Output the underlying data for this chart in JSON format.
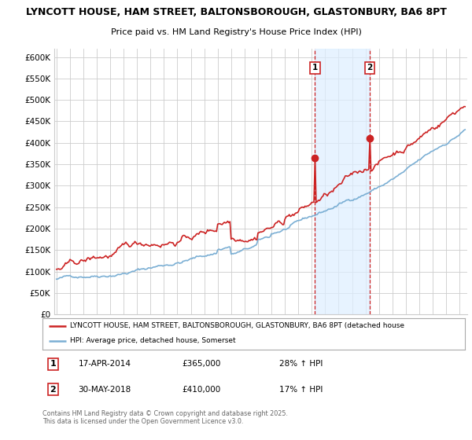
{
  "title_line1": "LYNCOTT HOUSE, HAM STREET, BALTONSBOROUGH, GLASTONBURY, BA6 8PT",
  "title_line2": "Price paid vs. HM Land Registry's House Price Index (HPI)",
  "hpi_color": "#7bafd4",
  "price_color": "#cc2222",
  "sale1_date": "17-APR-2014",
  "sale1_price": "£365,000",
  "sale1_pct": "28% ↑ HPI",
  "sale2_date": "30-MAY-2018",
  "sale2_price": "£410,000",
  "sale2_pct": "17% ↑ HPI",
  "legend_line1": "LYNCOTT HOUSE, HAM STREET, BALTONSBOROUGH, GLASTONBURY, BA6 8PT (detached house",
  "legend_line2": "HPI: Average price, detached house, Somerset",
  "footer": "Contains HM Land Registry data © Crown copyright and database right 2025.\nThis data is licensed under the Open Government Licence v3.0.",
  "ylim": [
    0,
    620000
  ],
  "yticks": [
    0,
    50000,
    100000,
    150000,
    200000,
    250000,
    300000,
    350000,
    400000,
    450000,
    500000,
    550000,
    600000
  ],
  "background_color": "#ffffff",
  "grid_color": "#cccccc",
  "shade_color": "#ddeeff"
}
